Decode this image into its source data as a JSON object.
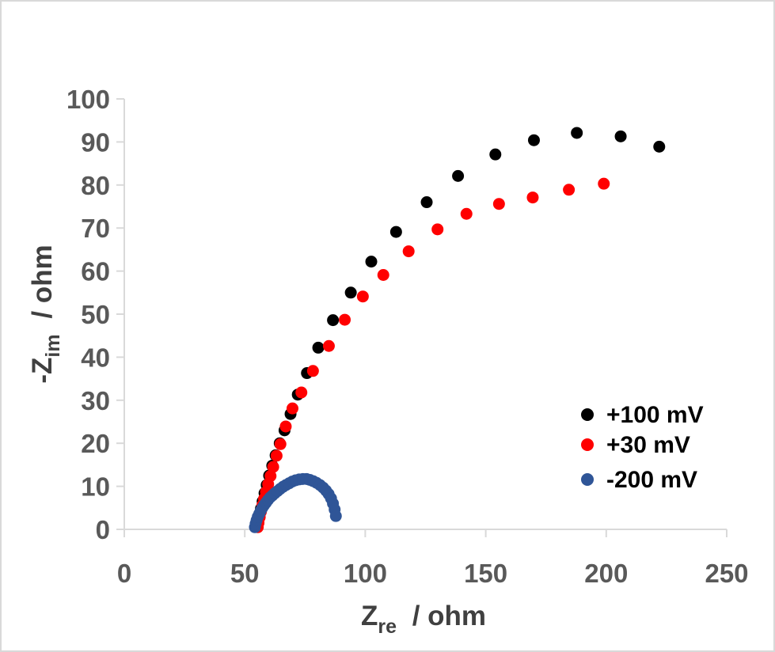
{
  "chart_data": {
    "type": "scatter",
    "xlim": [
      0,
      250
    ],
    "ylim": [
      0,
      100
    ],
    "x_ticks": [
      0,
      50,
      100,
      150,
      200,
      250
    ],
    "y_ticks": [
      0,
      10,
      20,
      30,
      40,
      50,
      60,
      70,
      80,
      90,
      100
    ],
    "x_ticks_text": [
      "0",
      "50",
      "100",
      "150",
      "200",
      "250"
    ],
    "y_ticks_text": [
      "0",
      "10",
      "20",
      "30",
      "40",
      "50",
      "60",
      "70",
      "80",
      "90",
      "100"
    ],
    "xlabel": {
      "main": "Z",
      "sub": "re",
      "rest": " / ohm"
    },
    "ylabel": {
      "main": "-Z",
      "sub": "im",
      "rest": " / ohm"
    },
    "grid": false,
    "legend_position": "bottom-right",
    "series": [
      {
        "name": "+100 mV",
        "color": "#000000",
        "x": [
          55.2,
          55.6,
          56.1,
          56.7,
          57.4,
          58.2,
          59.1,
          60.1,
          61.4,
          62.8,
          64.5,
          66.5,
          69.0,
          72.0,
          75.8,
          80.5,
          86.6,
          94.0,
          102.5,
          112.8,
          125.5,
          138.5,
          154.0,
          170.0,
          187.8,
          206.0,
          222.0
        ],
        "y": [
          0.6,
          1.8,
          3.2,
          4.8,
          6.5,
          8.4,
          10.3,
          12.5,
          14.8,
          17.2,
          20.0,
          23.0,
          26.8,
          31.3,
          36.3,
          42.2,
          48.6,
          55.0,
          62.2,
          69.1,
          76.0,
          82.1,
          87.1,
          90.4,
          92.1,
          91.3,
          88.9
        ]
      },
      {
        "name": "+30 mV",
        "color": "#ff0000",
        "x": [
          55.4,
          55.7,
          56.2,
          56.7,
          57.3,
          58.0,
          58.8,
          59.7,
          60.7,
          61.8,
          63.2,
          64.8,
          67.0,
          69.8,
          73.5,
          78.3,
          84.9,
          91.5,
          99.0,
          107.5,
          118.0,
          130.0,
          142.0,
          155.5,
          169.5,
          184.5,
          199.0
        ],
        "y": [
          0.5,
          1.5,
          2.8,
          4.1,
          5.6,
          7.1,
          8.7,
          10.5,
          12.4,
          14.5,
          17.1,
          19.8,
          23.9,
          28.1,
          31.8,
          36.8,
          42.6,
          48.7,
          54.1,
          59.1,
          64.6,
          69.7,
          73.3,
          75.6,
          77.1,
          78.9,
          80.3
        ]
      },
      {
        "name": "-200 mV",
        "color": "#2f5597",
        "x": [
          54.2,
          54.5,
          54.9,
          55.4,
          56.0,
          56.6,
          57.3,
          58.0,
          58.8,
          59.6,
          60.5,
          61.5,
          62.5,
          63.6,
          64.7,
          65.9,
          67.1,
          68.4,
          69.7,
          71.1,
          72.6,
          74.1,
          75.6,
          77.0,
          78.4,
          79.8,
          81.2,
          82.5,
          83.7,
          84.8,
          85.8,
          86.6,
          87.3,
          87.8
        ],
        "y": [
          0.5,
          1.3,
          2.1,
          2.9,
          3.6,
          4.3,
          5.0,
          5.6,
          6.2,
          6.8,
          7.4,
          7.9,
          8.4,
          8.9,
          9.4,
          9.9,
          10.3,
          10.7,
          11.1,
          11.4,
          11.6,
          11.7,
          11.7,
          11.5,
          11.2,
          10.8,
          10.3,
          9.7,
          9.0,
          8.2,
          7.2,
          6.0,
          4.6,
          3.1
        ]
      }
    ]
  }
}
